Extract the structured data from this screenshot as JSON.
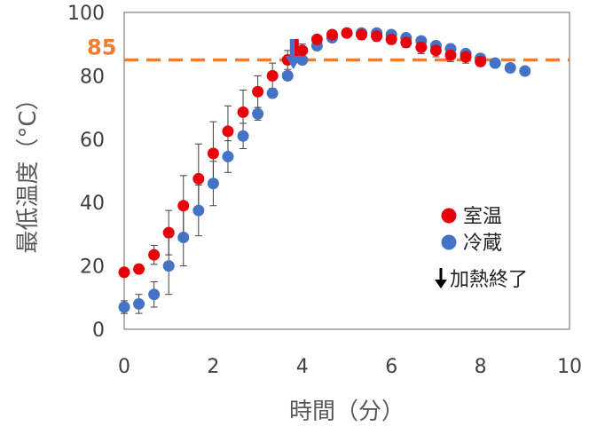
{
  "chart_data": {
    "type": "scatter",
    "xlabel": "時間（分）",
    "ylabel": "最低温度（°C）",
    "xlim": [
      0,
      10
    ],
    "ylim": [
      0,
      100
    ],
    "xticks": [
      0,
      2,
      4,
      6,
      8,
      10
    ],
    "yticks": [
      0,
      20,
      40,
      60,
      80,
      100
    ],
    "grid": false,
    "legend_position": "bottom-right-inside",
    "reference_line": {
      "y": 85,
      "label": "85",
      "color": "#ED7D31",
      "style": "dashed"
    },
    "marker": {
      "x": 3.8,
      "label": "加熱終了",
      "colors": [
        "#E8000B",
        "#4472C4"
      ]
    },
    "series": [
      {
        "name": "室温",
        "color": "#E8000B",
        "points": [
          {
            "x": 0.0,
            "y": 18,
            "err": 1
          },
          {
            "x": 0.33,
            "y": 19,
            "err": 1
          },
          {
            "x": 0.67,
            "y": 23.5,
            "err": 3
          },
          {
            "x": 1.0,
            "y": 30.5,
            "err": 7
          },
          {
            "x": 1.33,
            "y": 39,
            "err": 9.5
          },
          {
            "x": 1.67,
            "y": 47.5,
            "err": 11
          },
          {
            "x": 2.0,
            "y": 55.5,
            "err": 10
          },
          {
            "x": 2.33,
            "y": 62.5,
            "err": 8
          },
          {
            "x": 2.67,
            "y": 68.5,
            "err": 7
          },
          {
            "x": 3.0,
            "y": 75,
            "err": 5
          },
          {
            "x": 3.33,
            "y": 80,
            "err": 4
          },
          {
            "x": 3.67,
            "y": 85,
            "err": 3
          },
          {
            "x": 4.0,
            "y": 88,
            "err": 2
          },
          {
            "x": 4.33,
            "y": 91.5,
            "err": 1
          },
          {
            "x": 4.67,
            "y": 93,
            "err": 1
          },
          {
            "x": 5.0,
            "y": 93.5,
            "err": 1
          },
          {
            "x": 5.33,
            "y": 93,
            "err": 1.5
          },
          {
            "x": 5.67,
            "y": 92.5,
            "err": 1.5
          },
          {
            "x": 6.0,
            "y": 91.5,
            "err": 1.5
          },
          {
            "x": 6.33,
            "y": 90.5,
            "err": 1.5
          },
          {
            "x": 6.67,
            "y": 89,
            "err": 2
          },
          {
            "x": 7.0,
            "y": 88,
            "err": 2
          },
          {
            "x": 7.33,
            "y": 86.5,
            "err": 2
          },
          {
            "x": 7.67,
            "y": 86,
            "err": 2
          },
          {
            "x": 8.0,
            "y": 84.5,
            "err": 1.5
          }
        ]
      },
      {
        "name": "冷蔵",
        "color": "#4472C4",
        "points": [
          {
            "x": 0.0,
            "y": 7,
            "err": 2
          },
          {
            "x": 0.33,
            "y": 8,
            "err": 3
          },
          {
            "x": 0.67,
            "y": 11,
            "err": 4
          },
          {
            "x": 1.0,
            "y": 20,
            "err": 9
          },
          {
            "x": 1.33,
            "y": 29,
            "err": 9
          },
          {
            "x": 1.67,
            "y": 37.5,
            "err": 8
          },
          {
            "x": 2.0,
            "y": 46,
            "err": 7
          },
          {
            "x": 2.33,
            "y": 54.5,
            "err": 5
          },
          {
            "x": 2.67,
            "y": 61,
            "err": 4
          },
          {
            "x": 3.0,
            "y": 68,
            "err": 2
          },
          {
            "x": 3.33,
            "y": 74.5,
            "err": 1
          },
          {
            "x": 3.67,
            "y": 80,
            "err": 1
          },
          {
            "x": 4.0,
            "y": 85,
            "err": 1
          },
          {
            "x": 4.33,
            "y": 89.5,
            "err": 1
          },
          {
            "x": 4.67,
            "y": 92,
            "err": 1
          },
          {
            "x": 5.0,
            "y": 93.5,
            "err": 1
          },
          {
            "x": 5.33,
            "y": 93.5,
            "err": 1
          },
          {
            "x": 5.67,
            "y": 93.5,
            "err": 1
          },
          {
            "x": 6.0,
            "y": 93,
            "err": 1
          },
          {
            "x": 6.33,
            "y": 92,
            "err": 1
          },
          {
            "x": 6.67,
            "y": 91,
            "err": 1
          },
          {
            "x": 7.0,
            "y": 89.5,
            "err": 1
          },
          {
            "x": 7.33,
            "y": 88.5,
            "err": 1
          },
          {
            "x": 7.67,
            "y": 87,
            "err": 1
          },
          {
            "x": 8.0,
            "y": 85.5,
            "err": 1
          },
          {
            "x": 8.33,
            "y": 84,
            "err": 1
          },
          {
            "x": 8.67,
            "y": 82.5,
            "err": 1
          },
          {
            "x": 9.0,
            "y": 81.5,
            "err": 1
          }
        ]
      }
    ]
  }
}
